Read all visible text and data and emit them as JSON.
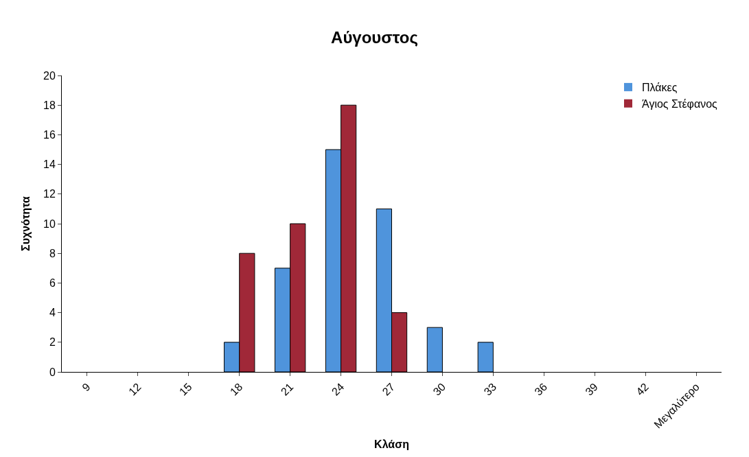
{
  "chart_data": {
    "type": "bar",
    "title": "Αύγουστος",
    "xlabel": "Κλάση",
    "ylabel": "Συχνότητα",
    "categories": [
      "9",
      "12",
      "15",
      "18",
      "21",
      "24",
      "27",
      "30",
      "33",
      "36",
      "39",
      "42",
      "Μεγαλύτερο"
    ],
    "series": [
      {
        "name": "Πλάκες",
        "color": "#4f94dc",
        "values": [
          0,
          0,
          0,
          2,
          7,
          15,
          11,
          3,
          2,
          0,
          0,
          0,
          0
        ]
      },
      {
        "name": "Άγιος Στέφανος",
        "color": "#a02838",
        "values": [
          0,
          0,
          0,
          8,
          10,
          18,
          4,
          0,
          0,
          0,
          0,
          0,
          0
        ]
      }
    ],
    "ylim": [
      0,
      20
    ],
    "yticks": [
      0,
      2,
      4,
      6,
      8,
      10,
      12,
      14,
      16,
      18,
      20
    ],
    "legend": "top right"
  }
}
